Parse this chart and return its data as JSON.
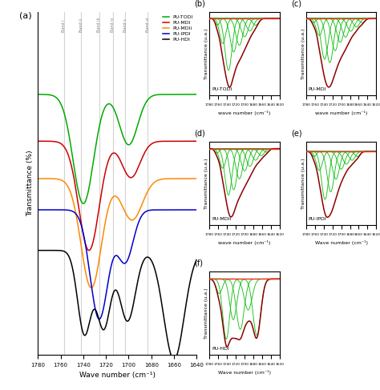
{
  "title_a": "(a)",
  "title_b": "(b)",
  "title_c": "(c)",
  "title_d": "(d)",
  "title_e": "(e)",
  "title_f": "(f)",
  "legend_labels": [
    "PU-TODI",
    "PU-MDI",
    "PU-MDIi",
    "PU-IPDI",
    "PU-HDI"
  ],
  "legend_colors": [
    "#00aa00",
    "#cc0000",
    "#ff8800",
    "#0000cc",
    "#000000"
  ],
  "band_positions": [
    1757,
    1742,
    1726,
    1714,
    1703,
    1683
  ],
  "band_labels": [
    "Band i",
    "Band ii",
    "Band iii",
    "Band iv",
    "Band v",
    "Band vi"
  ],
  "xlabel_a": "Wave number (cm⁻¹)",
  "ylabel_a": "Transmittance (%)",
  "ylabel_small": "Transmittance (u.a.)",
  "xlabel_b": "wave number (cm⁻¹)",
  "xlabel_c": "wave number (cm⁻¹)",
  "xlabel_d": "wave number (cm⁻¹)",
  "xlabel_e": "Wave number (cm⁻¹)",
  "xlabel_f": "Wave number (cm⁻¹)",
  "sub_names": [
    "PU-TODI",
    "PU-MDI",
    "PU-MDIi",
    "PU-IPDI",
    "PU-HDI"
  ],
  "green_color": "#00bb00",
  "red_color": "#cc0000",
  "darkred_color": "#8b0000",
  "baseline_color": "#ff3333"
}
